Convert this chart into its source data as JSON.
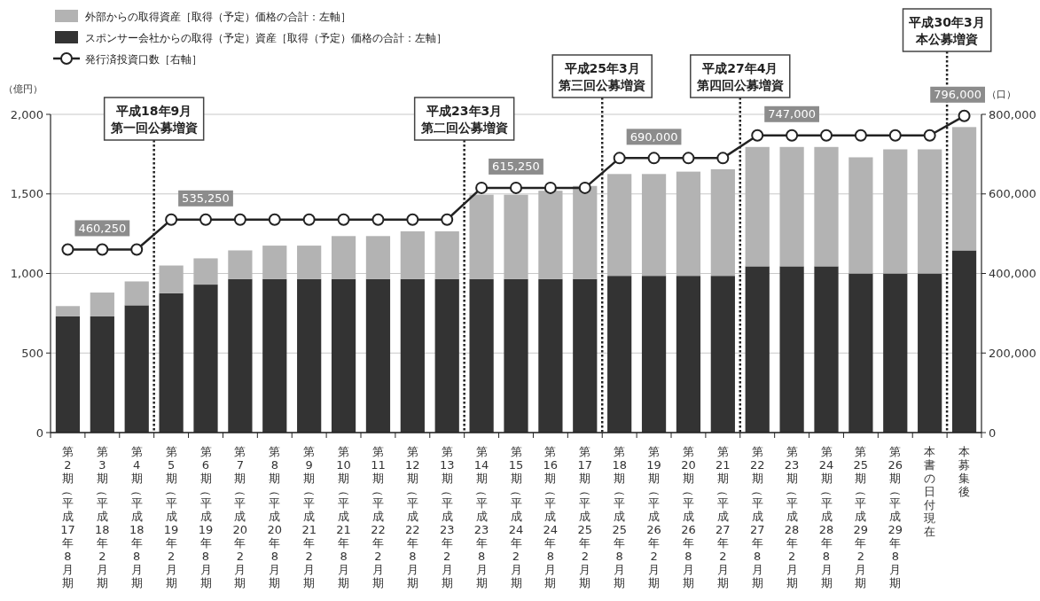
{
  "chart_data": {
    "type": "bar",
    "stacked": true,
    "categories": [
      "第2期（平成17年8月期",
      "第3期（平成18年2月期",
      "第4期（平成18年8月期",
      "第5期（平成19年2月期",
      "第6期（平成19年8月期",
      "第7期（平成20年2月期",
      "第8期（平成20年8月期",
      "第9期（平成21年2月期",
      "第10期（平成21年8月期",
      "第11期（平成22年2月期",
      "第12期（平成22年8月期",
      "第13期（平成23年2月期",
      "第14期（平成23年8月期",
      "第15期（平成24年2月期",
      "第16期（平成24年8月期",
      "第17期（平成25年2月期",
      "第18期（平成25年8月期",
      "第19期（平成26年2月期",
      "第20期（平成26年8月期",
      "第21期（平成27年2月期",
      "第22期（平成27年8月期",
      "第23期（平成28年2月期",
      "第24期（平成28年8月期",
      "第25期（平成29年2月期",
      "第26期（平成29年8月期",
      "本書の日付現在",
      "本募集後"
    ],
    "series": [
      {
        "name": "スポンサー会社からの取得（予定）資産［取得（予定）価格の合計：左軸］",
        "color": "#333333",
        "values": [
          730,
          730,
          800,
          875,
          930,
          965,
          965,
          965,
          965,
          965,
          965,
          965,
          965,
          965,
          965,
          965,
          985,
          985,
          985,
          985,
          1045,
          1045,
          1045,
          1000,
          1000,
          1000,
          1145
        ]
      },
      {
        "name": "外部からの取得資産［取得（予定）価格の合計：左軸］",
        "color": "#b3b3b3",
        "values": [
          65,
          150,
          150,
          175,
          165,
          180,
          210,
          210,
          270,
          270,
          300,
          300,
          530,
          530,
          555,
          585,
          640,
          640,
          655,
          670,
          750,
          750,
          750,
          730,
          780,
          780,
          775
        ]
      },
      {
        "name": "発行済投資口数［右軸］",
        "type": "line",
        "axis": "y2",
        "color": "#222222",
        "marker": "circle",
        "line_style": "solid",
        "values": [
          460250,
          460250,
          460250,
          535250,
          535250,
          535250,
          535250,
          535250,
          535250,
          535250,
          535250,
          535250,
          615250,
          615250,
          615250,
          615250,
          690000,
          690000,
          690000,
          690000,
          747000,
          747000,
          747000,
          747000,
          747000,
          747000,
          796000
        ],
        "value_labels": [
          null,
          "460,250",
          null,
          null,
          "535,250",
          null,
          null,
          null,
          null,
          null,
          null,
          null,
          null,
          "615,250",
          null,
          null,
          null,
          "690,000",
          null,
          null,
          null,
          "747,000",
          null,
          null,
          null,
          null,
          "796,000"
        ]
      }
    ],
    "ylabel": "（億円）",
    "y2label": "（口）",
    "ylim": [
      0,
      2000
    ],
    "yticks": [
      0,
      500,
      {
        "value": 1000,
        "label": "1,000"
      },
      {
        "value": 1500,
        "label": "1,500"
      },
      {
        "value": 2000,
        "label": "2,000"
      }
    ],
    "y2lim": [
      0,
      800000
    ],
    "y2ticks": [
      0,
      {
        "value": 200000,
        "label": "200,000"
      },
      {
        "value": 400000,
        "label": "400,000"
      },
      {
        "value": 600000,
        "label": "600,000"
      },
      {
        "value": 800000,
        "label": "800,000"
      }
    ],
    "grid": "y",
    "legend": "top left",
    "annotations": [
      "平成18年9月第一回公募増資",
      "平成23年3月第二回公募増資",
      "平成25年3月第三回公募増資",
      "平成27年4月第四回公募増資",
      "平成30年3月本公募増資"
    ]
  }
}
